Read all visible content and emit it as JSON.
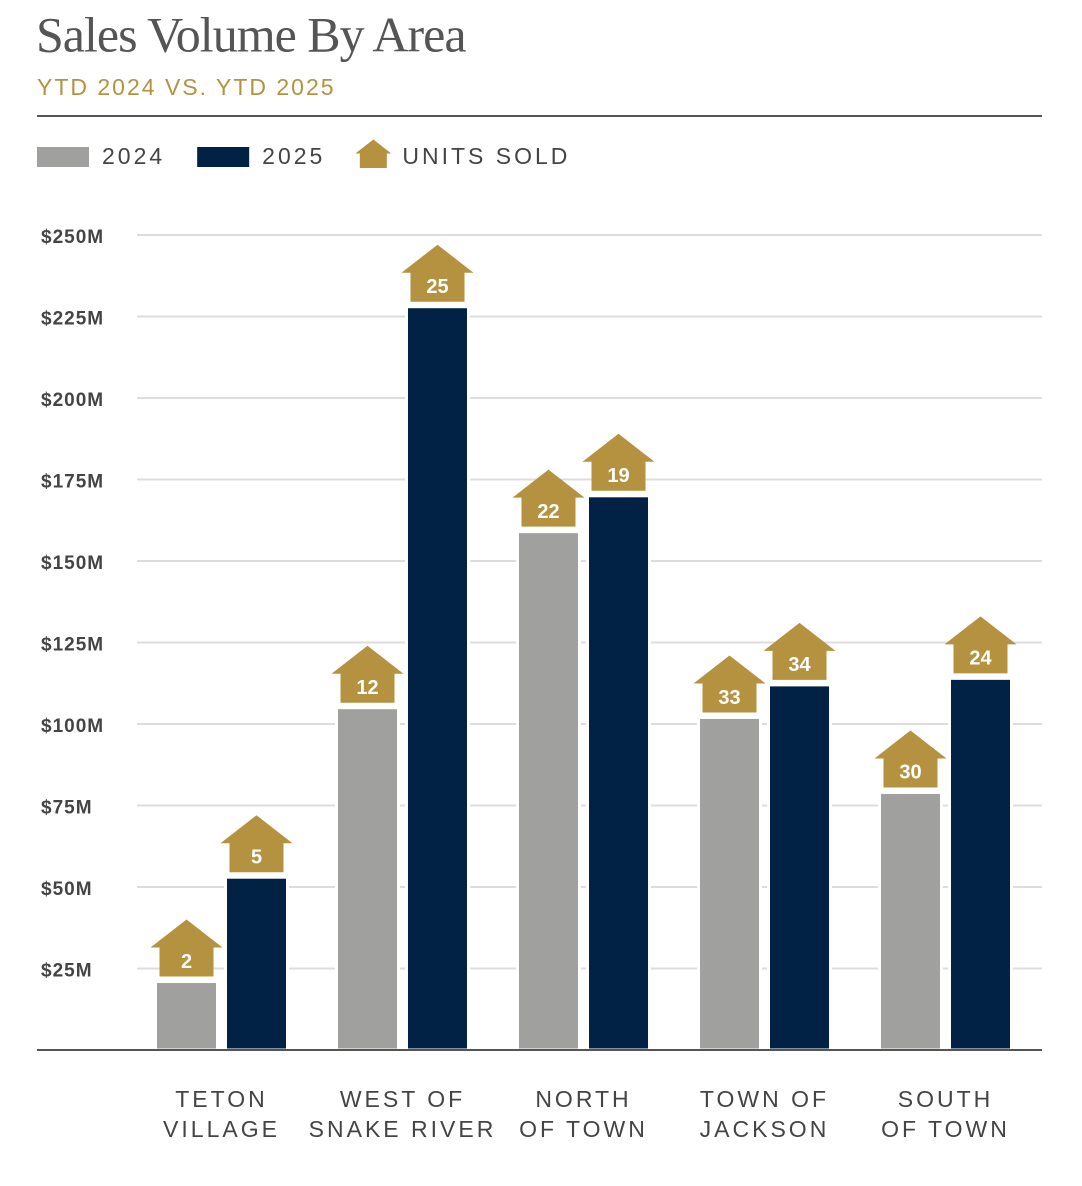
{
  "chart_data": {
    "type": "bar",
    "title": "Sales Volume By Area",
    "subtitle": "YTD 2024 VS. YTD 2025",
    "units_label": "UNITS SOLD",
    "units_color": "#b5923f",
    "categories": [
      [
        "TETON",
        "VILLAGE"
      ],
      [
        "WEST OF",
        "SNAKE RIVER"
      ],
      [
        "NORTH",
        "OF TOWN"
      ],
      [
        "TOWN OF",
        "JACKSON"
      ],
      [
        "SOUTH",
        "OF TOWN"
      ]
    ],
    "series": [
      {
        "name": "2024",
        "color": "#a0a09f",
        "values": [
          21,
          105,
          159,
          102,
          79
        ],
        "units": [
          2,
          12,
          22,
          33,
          30
        ]
      },
      {
        "name": "2025",
        "color": "#012245",
        "values": [
          53,
          228,
          170,
          112,
          114
        ],
        "units": [
          5,
          25,
          19,
          34,
          24
        ]
      }
    ],
    "ylim": [
      0,
      250
    ],
    "yticks": [
      {
        "value": 25,
        "label": "$25M"
      },
      {
        "value": 50,
        "label": "$50M"
      },
      {
        "value": 75,
        "label": "$75M"
      },
      {
        "value": 100,
        "label": "$100M"
      },
      {
        "value": 125,
        "label": "$125M"
      },
      {
        "value": 150,
        "label": "$150M"
      },
      {
        "value": 175,
        "label": "$175M"
      },
      {
        "value": 200,
        "label": "$200M"
      },
      {
        "value": 225,
        "label": "$225M"
      },
      {
        "value": 250,
        "label": "$250M"
      }
    ],
    "grid": true
  }
}
